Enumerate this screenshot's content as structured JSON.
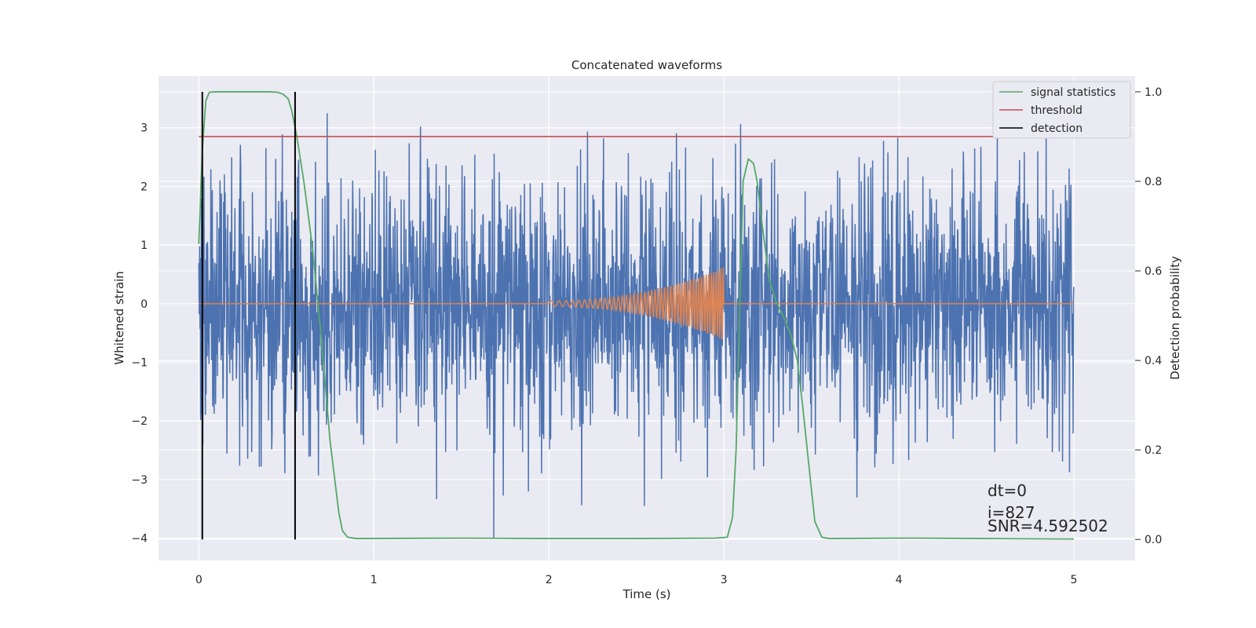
{
  "chart_data": {
    "type": "line",
    "title": "Concatenated waveforms",
    "xlabel": "Time (s)",
    "ylabel": "Whitened strain",
    "ylabel_right": "Detection probability",
    "xlim": [
      -0.23,
      5.35
    ],
    "ylim": [
      -4.38,
      3.88
    ],
    "ylim_right": [
      -0.047,
      1.035
    ],
    "x_ticks": [
      0,
      1,
      2,
      3,
      4,
      5
    ],
    "x_tick_labels": [
      "0",
      "1",
      "2",
      "3",
      "4",
      "5"
    ],
    "y_ticks": [
      -4,
      -3,
      -2,
      -1,
      0,
      1,
      2,
      3
    ],
    "y_tick_labels": [
      "−4",
      "−3",
      "−2",
      "−1",
      "0",
      "1",
      "2",
      "3"
    ],
    "y_right_ticks": [
      0.0,
      0.2,
      0.4,
      0.6,
      0.8,
      1.0
    ],
    "y_right_tick_labels": [
      "0.0",
      "0.2",
      "0.4",
      "0.6",
      "0.8",
      "1.0"
    ],
    "grid": true,
    "legend_position": "top-right",
    "colors": {
      "noise": "#4c72b0",
      "template": "#dd8452",
      "signal_statistics": "#55a868",
      "threshold": "#c44e52",
      "detection": "#000000",
      "background": "#eaeaf2"
    },
    "series": [
      {
        "name": "",
        "axis": "left",
        "description_kind": "whitened noise strain",
        "x_range": [
          0,
          5
        ],
        "approx_std": 1.1,
        "approx_min": -4.0,
        "approx_max": 3.5
      },
      {
        "name": "",
        "axis": "left",
        "x_range": [
          0,
          5
        ],
        "chirp": {
          "start": 2.0,
          "end": 3.0,
          "start_amplitude": 0.05,
          "end_amplitude": 0.62,
          "start_freq": 20,
          "end_freq": 75
        }
      },
      {
        "name": "signal statistics",
        "axis": "right",
        "x": [
          0.0,
          0.02,
          0.04,
          0.06,
          0.1,
          0.2,
          0.3,
          0.4,
          0.45,
          0.48,
          0.51,
          0.53,
          0.56,
          0.6,
          0.65,
          0.7,
          0.75,
          0.8,
          0.82,
          0.85,
          0.9,
          1.5,
          2.0,
          2.5,
          2.95,
          3.02,
          3.05,
          3.07,
          3.09,
          3.11,
          3.14,
          3.17,
          3.19,
          3.22,
          3.26,
          3.3,
          3.35,
          3.38,
          3.42,
          3.45,
          3.49,
          3.52,
          3.56,
          3.6,
          4.0,
          4.1,
          4.5,
          5.0
        ],
        "y": [
          0.66,
          0.87,
          0.98,
          0.999,
          1.0,
          1.0,
          1.0,
          1.0,
          0.999,
          0.995,
          0.985,
          0.96,
          0.9,
          0.8,
          0.65,
          0.45,
          0.22,
          0.06,
          0.02,
          0.005,
          0.002,
          0.003,
          0.002,
          0.002,
          0.003,
          0.005,
          0.05,
          0.2,
          0.5,
          0.8,
          0.85,
          0.84,
          0.8,
          0.7,
          0.58,
          0.53,
          0.49,
          0.46,
          0.4,
          0.3,
          0.15,
          0.04,
          0.005,
          0.002,
          0.003,
          0.003,
          0.002,
          0.001
        ]
      },
      {
        "name": "threshold",
        "axis": "right",
        "x": [
          0.0,
          5.1
        ],
        "y": [
          0.9,
          0.9
        ]
      },
      {
        "name": "detection",
        "axis": "right",
        "vertical_lines_x": [
          0.02,
          0.55
        ],
        "y_range": [
          0.0,
          1.0
        ]
      }
    ],
    "annotations": [
      "dt=0",
      "i=827",
      "SNR=4.592502"
    ]
  }
}
